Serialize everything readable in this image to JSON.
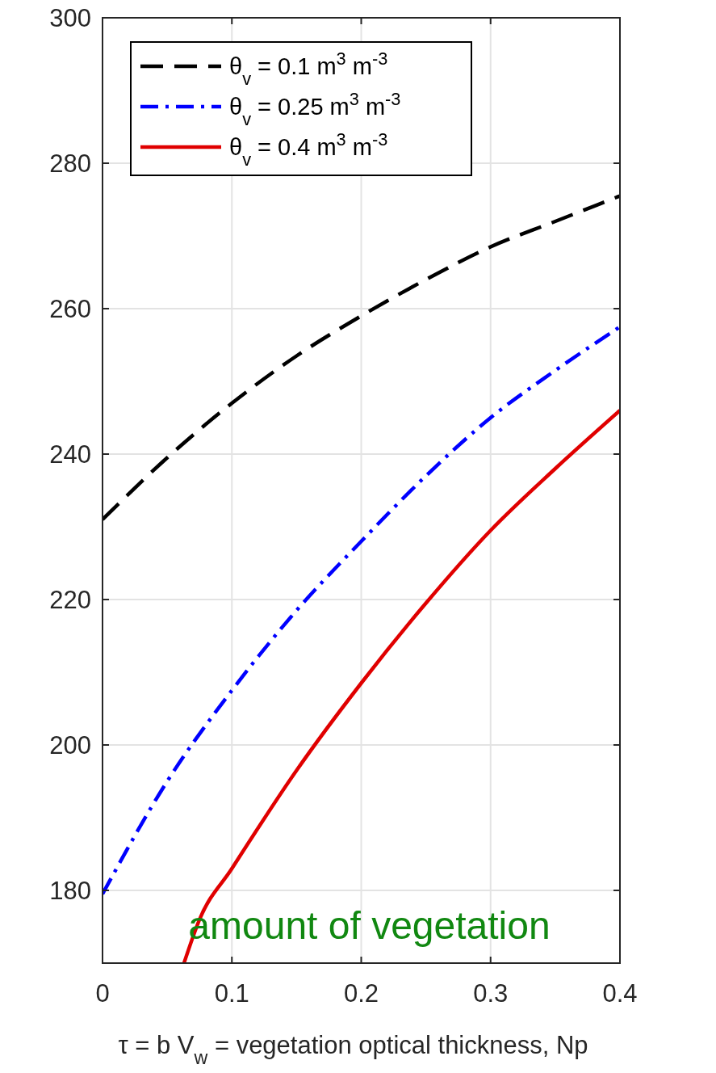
{
  "chart_data": {
    "type": "line",
    "xlabel": "τ = b V$_{w}$ = vegetation optical thickness, Np",
    "x": [
      0,
      0.05,
      0.1,
      0.15,
      0.2,
      0.25,
      0.3,
      0.35,
      0.4
    ],
    "xlim": [
      0,
      0.4
    ],
    "xticks": [
      0,
      0.1,
      0.2,
      0.3,
      0.4
    ],
    "ylim": [
      170,
      300
    ],
    "yticks": [
      {
        "value": 170,
        "label": null
      },
      180,
      200,
      220,
      240,
      260,
      280,
      300
    ],
    "grid": true,
    "legend": "top left",
    "annotations": [
      "amount of vegetation"
    ],
    "series": [
      {
        "name": "θ$_{v}$ = 0.1 m$^{3}$ m$^{-3}$",
        "color": "#000000",
        "line_style": "dashed",
        "values": [
          231,
          239.5,
          247,
          253.5,
          259,
          264,
          268.5,
          272,
          275.5
        ]
      },
      {
        "name": "θ$_{v}$ = 0.25 m$^{3}$ m$^{-3}$",
        "color": "#0000ff",
        "line_style": "dashdot",
        "values": [
          179.5,
          195,
          207.5,
          218.5,
          228,
          237,
          245,
          251.5,
          257.5
        ]
      },
      {
        "name": "θ$_{v}$ = 0.4 m$^{3}$ m$^{-3}$",
        "color": "#e00000",
        "line_style": "solid",
        "x": [
          0.063,
          0.075,
          0.1,
          0.15,
          0.2,
          0.25,
          0.3,
          0.35,
          0.4
        ],
        "values": [
          170,
          176,
          183,
          196.5,
          208.5,
          219.5,
          229.5,
          238,
          246
        ]
      }
    ]
  }
}
